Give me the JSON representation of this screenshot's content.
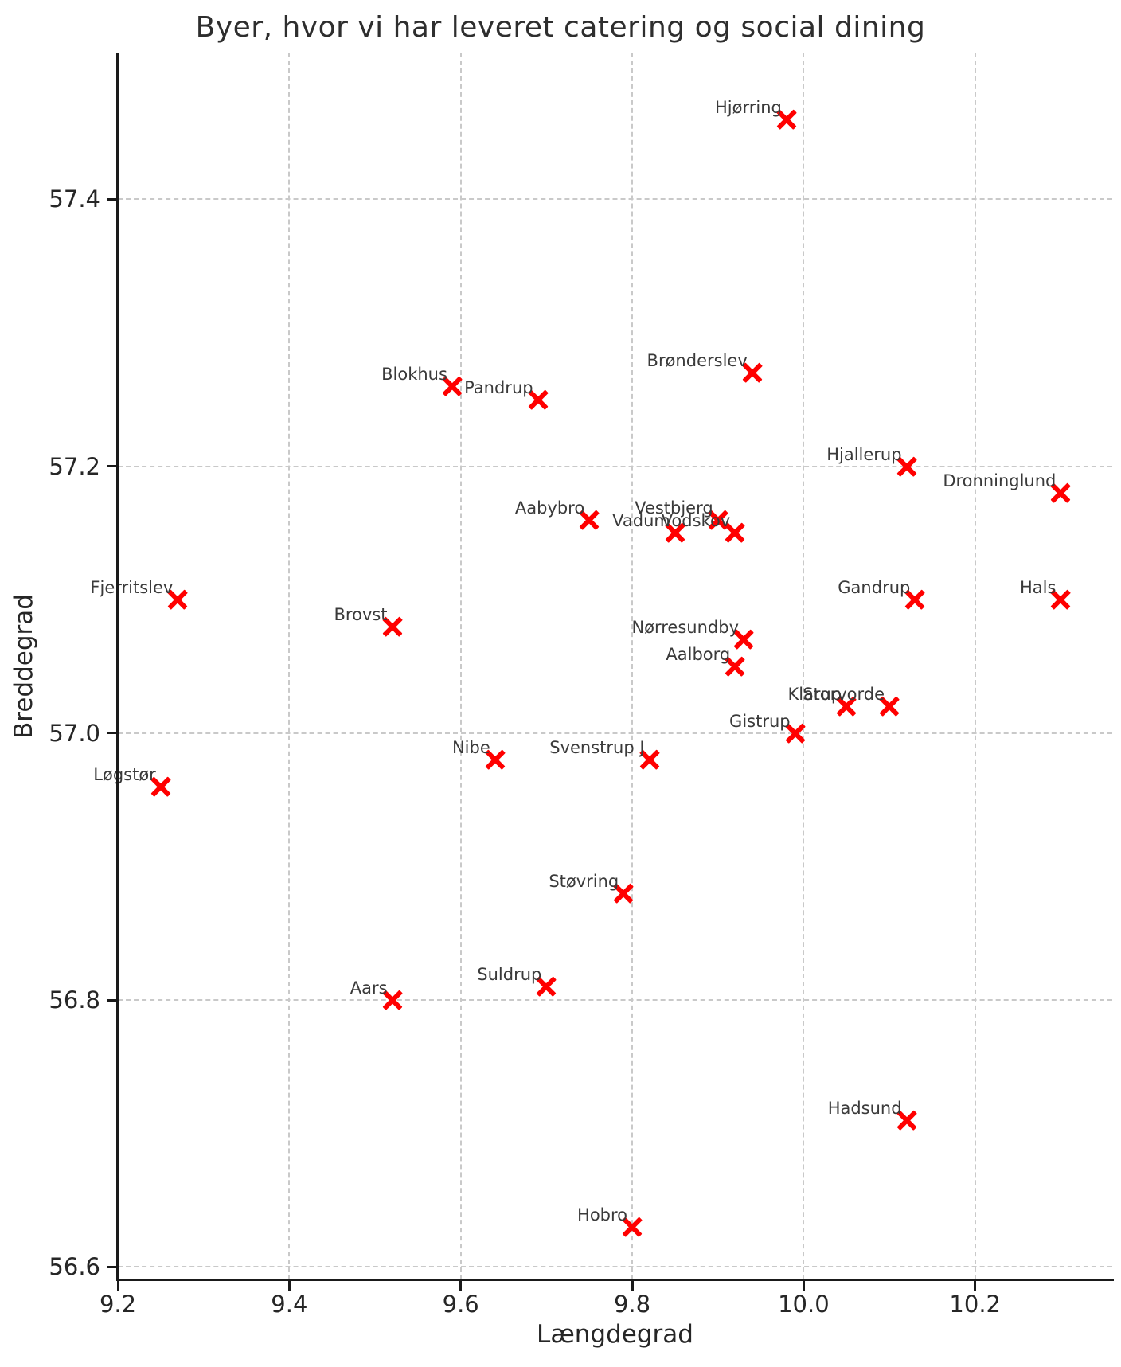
{
  "chart_data": {
    "type": "scatter",
    "title": "Byer, hvor vi har leveret catering og social dining",
    "xlabel": "Længdegrad",
    "ylabel": "Breddegrad",
    "xlim": [
      9.2,
      10.36
    ],
    "ylim": [
      56.59,
      57.51
    ],
    "x_ticks": [
      9.2,
      9.4,
      9.6,
      9.8,
      10.0,
      10.2
    ],
    "y_ticks": [
      56.6,
      56.8,
      57.0,
      57.2,
      57.4
    ],
    "grid": true,
    "grid_style": "dashed",
    "legend": "none",
    "marker_shape": "x",
    "marker_color": "#ff0000",
    "label_color": "#3a3a3a",
    "points": [
      {
        "label": "Hjørring",
        "x": 9.98,
        "y": 57.46
      },
      {
        "label": "Brønderslev",
        "x": 9.94,
        "y": 57.27
      },
      {
        "label": "Blokhus",
        "x": 9.59,
        "y": 57.26
      },
      {
        "label": "Pandrup",
        "x": 9.69,
        "y": 57.25
      },
      {
        "label": "Hjallerup",
        "x": 10.12,
        "y": 57.2
      },
      {
        "label": "Dronninglund",
        "x": 10.3,
        "y": 57.18
      },
      {
        "label": "Aabybro",
        "x": 9.75,
        "y": 57.16
      },
      {
        "label": "Vestbjerg",
        "x": 9.9,
        "y": 57.16
      },
      {
        "label": "Vadum",
        "x": 9.85,
        "y": 57.15
      },
      {
        "label": "Vodskov",
        "x": 9.92,
        "y": 57.15
      },
      {
        "label": "Fjerritslev",
        "x": 9.27,
        "y": 57.1
      },
      {
        "label": "Gandrup",
        "x": 10.13,
        "y": 57.1
      },
      {
        "label": "Hals",
        "x": 10.3,
        "y": 57.1
      },
      {
        "label": "Brovst",
        "x": 9.52,
        "y": 57.08
      },
      {
        "label": "Nørresundby",
        "x": 9.93,
        "y": 57.07
      },
      {
        "label": "Aalborg",
        "x": 9.92,
        "y": 57.05
      },
      {
        "label": "Klarup",
        "x": 10.05,
        "y": 57.02
      },
      {
        "label": "Storvorde",
        "x": 10.1,
        "y": 57.02
      },
      {
        "label": "Gistrup",
        "x": 9.99,
        "y": 57.0
      },
      {
        "label": "Nibe",
        "x": 9.64,
        "y": 56.98
      },
      {
        "label": "Svenstrup J",
        "x": 9.82,
        "y": 56.98
      },
      {
        "label": "Løgstør",
        "x": 9.25,
        "y": 56.96
      },
      {
        "label": "Støvring",
        "x": 9.79,
        "y": 56.88
      },
      {
        "label": "Suldrup",
        "x": 9.7,
        "y": 56.81
      },
      {
        "label": "Aars",
        "x": 9.52,
        "y": 56.8
      },
      {
        "label": "Hadsund",
        "x": 10.12,
        "y": 56.71
      },
      {
        "label": "Hobro",
        "x": 9.8,
        "y": 56.63
      }
    ]
  }
}
